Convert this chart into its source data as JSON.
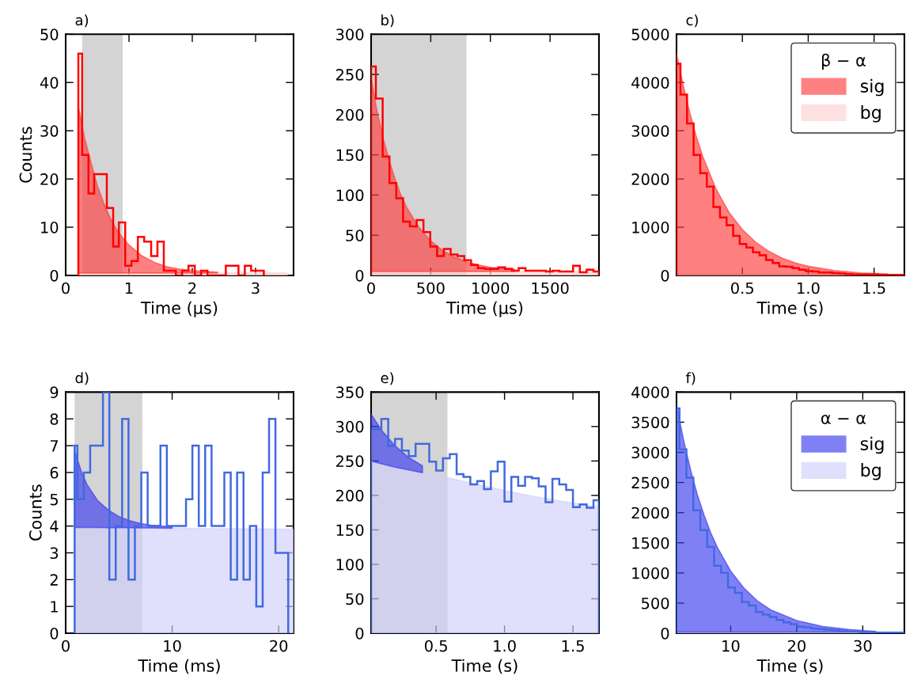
{
  "chart_data": [
    {
      "type": "histogram",
      "title": "a)",
      "xlabel": "Time (µs)",
      "ylabel": "Counts",
      "xlim": [
        0,
        3.6
      ],
      "ylim": [
        0,
        50
      ],
      "xticks": [
        0,
        1,
        2,
        3
      ],
      "yticks": [
        0,
        10,
        20,
        30,
        40,
        50
      ],
      "bands": [
        {
          "axis": "x",
          "from": 0.26,
          "to": 0.9,
          "color": "#a0a0a0"
        }
      ],
      "x": [
        0.2,
        0.3,
        0.4,
        0.5,
        0.6,
        0.7,
        0.8,
        0.9,
        1.0,
        1.2,
        1.4,
        1.6,
        1.8,
        2.0,
        2.4,
        2.8,
        3.2,
        3.5
      ],
      "series": [
        {
          "type": "area",
          "color": "#ffe0e0",
          "values": [
            0.5,
            0.5,
            0.5,
            0.5,
            0.5,
            0.5,
            0.5,
            0.5,
            0.5,
            0.5,
            0.5,
            0.5,
            0.5,
            0.5,
            0.5,
            0.5,
            0.5,
            0.5
          ]
        },
        {
          "type": "area",
          "color": "#ff8080",
          "values": [
            35,
            28.4,
            23.4,
            18.6,
            15,
            12,
            9.6,
            7.8,
            6.3,
            4.1,
            2.7,
            1.8,
            1.3,
            1,
            0.7,
            null,
            null,
            null
          ]
        },
        {
          "type": "histogram",
          "color": "#ff0000",
          "bins": [
            0.2,
            0.26,
            0.36,
            0.45,
            0.55,
            0.65,
            0.75,
            0.84,
            0.94,
            1.04,
            1.14,
            1.24,
            1.35,
            1.45,
            1.55,
            1.65,
            1.74,
            1.84,
            1.94,
            2.04,
            2.14,
            2.24,
            2.34,
            2.44,
            2.53,
            2.63,
            2.73,
            2.83,
            2.93,
            3.03,
            3.13
          ],
          "values": [
            46,
            25,
            17,
            21,
            21,
            14,
            6,
            11,
            2,
            3,
            8,
            7,
            4,
            7,
            1,
            1,
            0,
            1,
            2,
            0,
            1,
            0,
            0,
            0,
            2,
            2,
            0,
            2,
            1,
            1
          ]
        }
      ]
    },
    {
      "type": "histogram",
      "title": "b)",
      "xlabel": "Time (µs)",
      "xlim": [
        0,
        1910
      ],
      "ylim": [
        0,
        300
      ],
      "xticks": [
        0,
        500,
        1000,
        1500
      ],
      "yticks": [
        0,
        50,
        100,
        150,
        200,
        250,
        300
      ],
      "bands": [
        {
          "axis": "x",
          "from": 0,
          "to": 800,
          "color": "#a0a0a0"
        }
      ],
      "x": [
        0,
        50,
        100,
        150,
        200,
        250,
        300,
        400,
        500,
        600,
        700,
        800,
        900,
        1000,
        1200,
        1400,
        1600,
        1910
      ],
      "series": [
        {
          "type": "area",
          "color": "#ffe0e0",
          "values": [
            5,
            5,
            5,
            5,
            5,
            5,
            5,
            5,
            5,
            5,
            5,
            5,
            5,
            5,
            5,
            5,
            5,
            5
          ]
        },
        {
          "type": "area",
          "color": "#ff8080",
          "values": [
            245,
            204,
            171,
            144,
            120,
            100,
            84,
            60,
            43,
            31,
            23,
            17,
            13,
            10,
            8,
            null,
            null,
            null
          ]
        },
        {
          "type": "histogram",
          "color": "#ff0000",
          "bins": [
            0,
            40,
            97,
            154,
            211,
            268,
            325,
            382,
            439,
            496,
            553,
            610,
            667,
            724,
            781,
            838,
            895,
            952,
            1009,
            1066,
            1123,
            1180,
            1237,
            1294,
            1351,
            1408,
            1465,
            1522,
            1579,
            1636,
            1693,
            1750,
            1807,
            1864,
            1910
          ],
          "values": [
            260,
            220,
            148,
            115,
            96,
            67,
            61,
            69,
            54,
            36,
            24,
            33,
            26,
            24,
            19,
            13,
            9,
            8,
            8,
            10,
            8,
            6,
            9,
            6,
            6,
            6,
            5,
            6,
            5,
            5,
            12,
            4,
            7,
            5
          ]
        }
      ]
    },
    {
      "type": "histogram",
      "title": "c)",
      "xlabel": "Time (s)",
      "xlim": [
        0,
        1.73
      ],
      "ylim": [
        0,
        5000
      ],
      "xticks": [
        0.5,
        {
          "value": 1,
          "label": "1.0"
        },
        1.5
      ],
      "yticks": [
        0,
        1000,
        2000,
        3000,
        4000,
        5000
      ],
      "legend": "top right",
      "legend_title": "β − α",
      "x": [
        0,
        0.05,
        0.1,
        0.15,
        0.2,
        0.3,
        0.4,
        0.5,
        0.6,
        0.7,
        0.8,
        0.9,
        1.0,
        1.2,
        1.4,
        1.6,
        1.73
      ],
      "series": [
        {
          "name": "bg",
          "type": "area",
          "color": "#ffe0e0",
          "values": [
            20,
            20,
            20,
            20,
            20,
            20,
            20,
            20,
            20,
            20,
            20,
            20,
            20,
            20,
            20,
            20,
            20
          ]
        },
        {
          "name": "sig",
          "type": "area",
          "color": "#ff8080",
          "values": [
            4600,
            3950,
            3380,
            2880,
            2460,
            1790,
            1300,
            950,
            690,
            500,
            360,
            260,
            190,
            100,
            50,
            30,
            null
          ]
        },
        {
          "type": "histogram",
          "color": "#ff0000",
          "bins": [
            0,
            0.03,
            0.08,
            0.13,
            0.18,
            0.23,
            0.28,
            0.33,
            0.38,
            0.43,
            0.48,
            0.53,
            0.58,
            0.63,
            0.68,
            0.73,
            0.78,
            0.83,
            0.88,
            0.93,
            0.98,
            1.03,
            1.08,
            1.13,
            1.18,
            1.23,
            1.28,
            1.33,
            1.38,
            1.43,
            1.48,
            1.53,
            1.58,
            1.63,
            1.68,
            1.73
          ],
          "values": [
            4390,
            3750,
            3150,
            2500,
            2120,
            1840,
            1420,
            1200,
            1040,
            820,
            650,
            580,
            480,
            420,
            320,
            260,
            190,
            180,
            150,
            120,
            90,
            80,
            60,
            60,
            50,
            40,
            30,
            20,
            20,
            20,
            20,
            10,
            10,
            10,
            10
          ]
        }
      ]
    },
    {
      "type": "histogram",
      "title": "d)",
      "xlabel": "Time (ms)",
      "ylabel": "Counts",
      "xlim": [
        0,
        21.4
      ],
      "ylim": [
        0,
        9
      ],
      "xticks": [
        0,
        10,
        20
      ],
      "yticks": [
        0,
        1,
        2,
        3,
        4,
        5,
        6,
        7,
        8,
        9
      ],
      "bands": [
        {
          "axis": "x",
          "from": 0.84,
          "to": 7.2,
          "color": "#a0a0a0"
        }
      ],
      "x": [
        0.84,
        1.5,
        2,
        3,
        4,
        5,
        6,
        7,
        8,
        10,
        12,
        15,
        21.4
      ],
      "series": [
        {
          "type": "area",
          "color": "#e0e0fc",
          "values": [
            3.95,
            3.95,
            3.95,
            3.95,
            3.94,
            3.94,
            3.94,
            3.93,
            3.93,
            3.92,
            3.91,
            3.9,
            3.88
          ]
        },
        {
          "type": "area",
          "color": "#8080f5",
          "values": [
            6.8,
            6.0,
            5.55,
            4.95,
            4.6,
            4.35,
            4.2,
            4.1,
            4.03,
            3.97,
            null,
            null,
            null
          ]
        },
        {
          "type": "histogram",
          "color": "#4169e1",
          "bins": [
            0.84,
            1.1,
            1.7,
            2.3,
            2.9,
            3.5,
            4.1,
            4.7,
            5.3,
            5.9,
            6.5,
            7.1,
            7.7,
            8.3,
            8.9,
            9.5,
            10.1,
            10.7,
            11.3,
            11.9,
            12.5,
            13.1,
            13.7,
            14.3,
            14.9,
            15.5,
            16.1,
            16.7,
            17.3,
            17.9,
            18.5,
            19.1,
            19.7,
            20.3,
            20.9
          ],
          "values": [
            7,
            5,
            6,
            7,
            7,
            9,
            2,
            4,
            8,
            2,
            4,
            6,
            4,
            4,
            7,
            4,
            4,
            4,
            5,
            7,
            4,
            7,
            4,
            4,
            6,
            2,
            6,
            2,
            4,
            1,
            6,
            8,
            3,
            3
          ]
        }
      ]
    },
    {
      "type": "histogram",
      "title": "e)",
      "xlabel": "Time (s)",
      "xlim": [
        0.025,
        1.69
      ],
      "ylim": [
        0,
        350
      ],
      "xticks": [
        0.5,
        {
          "value": 1,
          "label": "1.0"
        },
        1.5
      ],
      "yticks": [
        0,
        50,
        100,
        150,
        200,
        250,
        300,
        350
      ],
      "bands": [
        {
          "axis": "x",
          "from": 0.025,
          "to": 0.583,
          "color": "#a0a0a0"
        }
      ],
      "x": [
        0.025,
        0.1,
        0.2,
        0.3,
        0.4,
        0.5,
        0.6,
        0.8,
        1.0,
        1.2,
        1.4,
        1.69
      ],
      "series": [
        {
          "type": "area",
          "color": "#e0e0fc",
          "values": [
            250,
            246,
            241,
            237,
            233,
            229,
            225,
            216,
            207,
            199,
            192,
            183
          ]
        },
        {
          "type": "area",
          "color": "#8080f5",
          "values": [
            318,
            295,
            272,
            255,
            243,
            null,
            null,
            null,
            null,
            null,
            null,
            null
          ]
        },
        {
          "type": "histogram",
          "color": "#4169e1",
          "bins": [
            0.025,
            0.05,
            0.1,
            0.15,
            0.2,
            0.25,
            0.3,
            0.35,
            0.4,
            0.45,
            0.5,
            0.55,
            0.6,
            0.65,
            0.7,
            0.75,
            0.8,
            0.85,
            0.9,
            0.95,
            1.0,
            1.05,
            1.1,
            1.15,
            1.2,
            1.25,
            1.3,
            1.35,
            1.4,
            1.45,
            1.5,
            1.55,
            1.6,
            1.65,
            1.69
          ],
          "values": [
            296,
            296,
            311,
            272,
            282,
            265,
            257,
            275,
            275,
            249,
            236,
            254,
            260,
            231,
            227,
            216,
            221,
            209,
            235,
            249,
            191,
            227,
            214,
            227,
            225,
            213,
            190,
            224,
            216,
            208,
            183,
            187,
            182,
            193
          ]
        }
      ]
    },
    {
      "type": "histogram",
      "title": "f)",
      "xlabel": "Time (s)",
      "xlim": [
        1.8,
        36.3
      ],
      "ylim": [
        0,
        4000
      ],
      "xticks": [
        10,
        20,
        30
      ],
      "yticks": [
        0,
        500,
        1000,
        1500,
        2000,
        2500,
        3000,
        3500,
        4000
      ],
      "legend": "top right",
      "legend_title": "α − α",
      "x": [
        1.8,
        2.5,
        3,
        4,
        5,
        6,
        7,
        8,
        10,
        12,
        14,
        16,
        20,
        24,
        28,
        32,
        36.3
      ],
      "series": [
        {
          "name": "bg",
          "type": "area",
          "color": "#e0e0fc",
          "values": [
            20,
            20,
            20,
            20,
            20,
            20,
            20,
            20,
            20,
            20,
            20,
            20,
            20,
            20,
            20,
            20,
            20
          ]
        },
        {
          "name": "sig",
          "type": "area",
          "color": "#8080f5",
          "values": [
            3800,
            3400,
            3140,
            2680,
            2280,
            1950,
            1660,
            1420,
            1030,
            750,
            540,
            390,
            210,
            110,
            60,
            30,
            null
          ]
        },
        {
          "type": "histogram",
          "color": "#4169e1",
          "bins": [
            1.8,
            2.25,
            3.3,
            4.35,
            5.4,
            6.45,
            7.5,
            8.55,
            9.6,
            10.65,
            11.7,
            12.75,
            13.8,
            14.85,
            15.9,
            16.95,
            18.0,
            19.05,
            20.1,
            21.15,
            22.2,
            23.25,
            24.3,
            25.35,
            26.4,
            27.45,
            28.5,
            29.55,
            30.6,
            31.65,
            32.7,
            33.75,
            34.8,
            35.85,
            36.3
          ],
          "values": [
            3730,
            3050,
            2580,
            2040,
            1710,
            1430,
            1120,
            1000,
            760,
            670,
            520,
            460,
            350,
            310,
            270,
            220,
            180,
            150,
            110,
            100,
            80,
            70,
            60,
            50,
            40,
            30,
            30,
            20,
            20,
            10,
            10,
            10,
            10,
            10
          ]
        }
      ]
    }
  ]
}
